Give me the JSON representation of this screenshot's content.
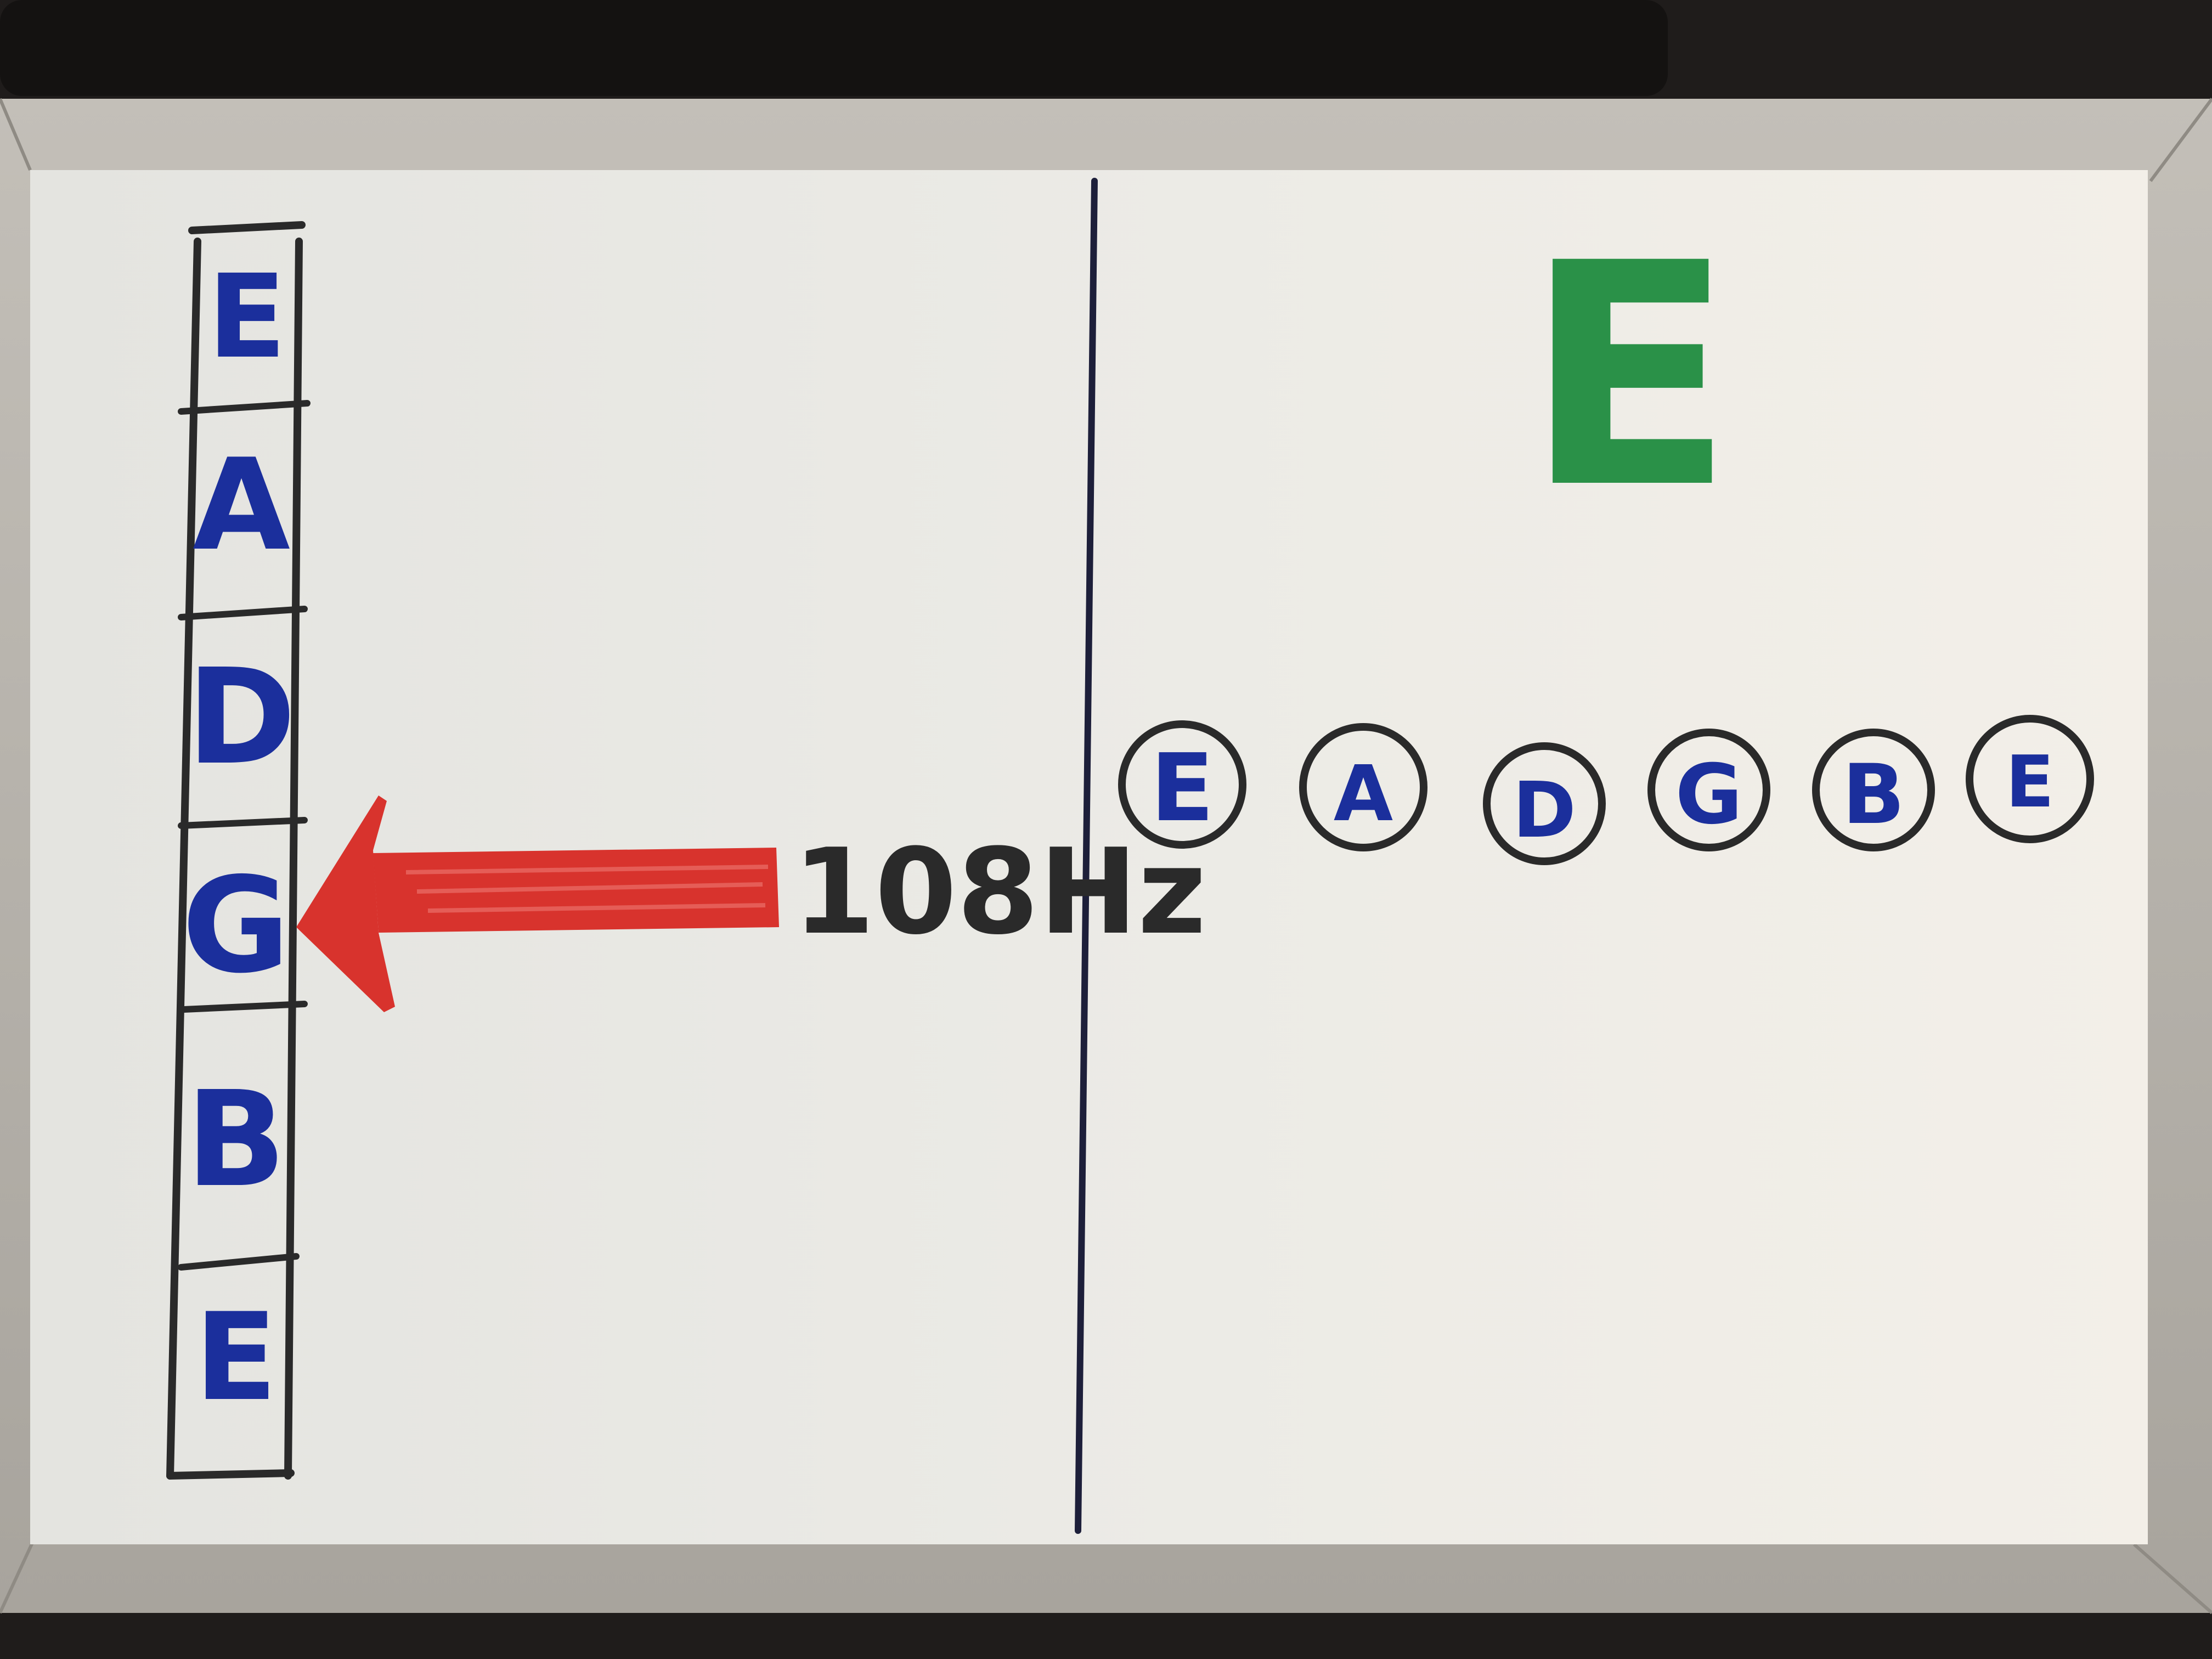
{
  "colors": {
    "background": "#1f1c1b",
    "frame": "#b5b1aa",
    "board": "#e9e8e2",
    "blue_marker": "#1b2f9c",
    "green_marker": "#2a9148",
    "red_marker": "#d8332d",
    "black_marker": "#2a2a2a"
  },
  "left_panel": {
    "string_column": {
      "letters": [
        "E",
        "A",
        "D",
        "G",
        "B",
        "E"
      ]
    },
    "arrow": {
      "label": "108Hz"
    }
  },
  "right_panel": {
    "big_letter": "E",
    "circled_notes": [
      "E",
      "A",
      "D",
      "G",
      "B",
      "E"
    ]
  }
}
